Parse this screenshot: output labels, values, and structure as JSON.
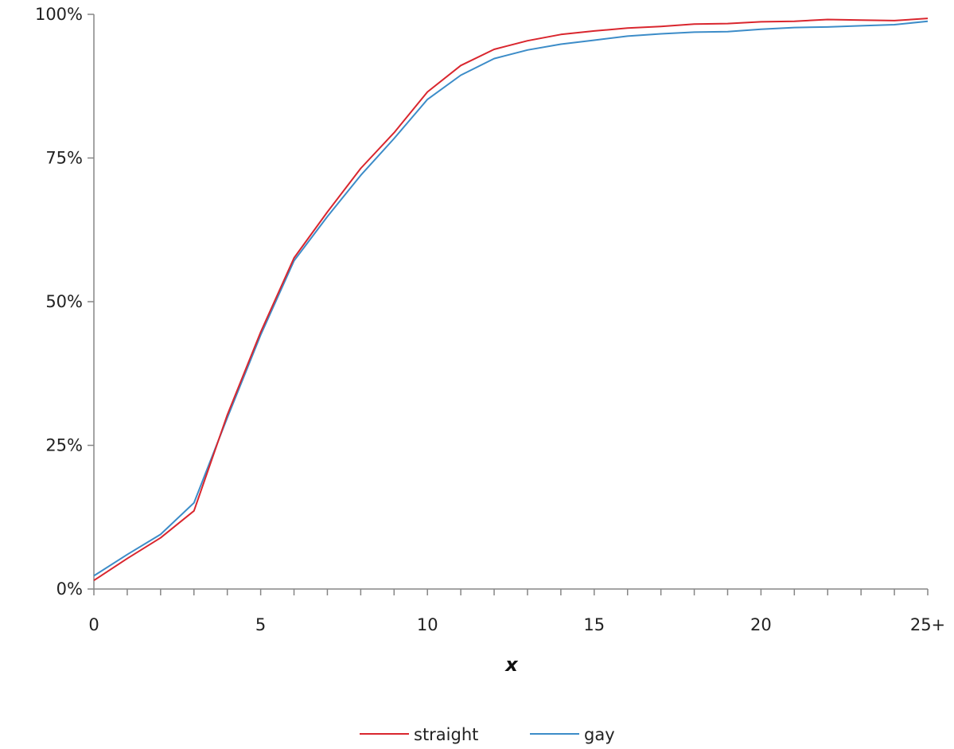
{
  "chart_data": {
    "type": "line",
    "title": "",
    "xlabel": "x",
    "ylabel": "",
    "x": [
      0,
      1,
      2,
      3,
      4,
      5,
      6,
      7,
      8,
      9,
      10,
      11,
      12,
      13,
      14,
      15,
      16,
      17,
      18,
      19,
      20,
      21,
      22,
      23,
      24,
      25
    ],
    "xlim": [
      0,
      25
    ],
    "ylim": [
      0,
      100
    ],
    "x_ticks": [
      {
        "value": 0,
        "label": "0"
      },
      {
        "value": 5,
        "label": "5"
      },
      {
        "value": 10,
        "label": "10"
      },
      {
        "value": 15,
        "label": "15"
      },
      {
        "value": 20,
        "label": "20"
      },
      {
        "value": 25,
        "label": "25+"
      }
    ],
    "y_ticks": [
      {
        "value": 0,
        "label": "0%"
      },
      {
        "value": 25,
        "label": "25%"
      },
      {
        "value": 50,
        "label": "50%"
      },
      {
        "value": 75,
        "label": "75%"
      },
      {
        "value": 100,
        "label": "100%"
      }
    ],
    "grid": false,
    "legend_position": "bottom-center",
    "series": [
      {
        "name": "straight",
        "color": "#d9262e",
        "values": [
          1.5,
          5.3,
          8.9,
          13.6,
          30.3,
          44.7,
          57.6,
          65.6,
          73.2,
          79.4,
          86.5,
          91.1,
          93.9,
          95.4,
          96.5,
          97.1,
          97.6,
          97.9,
          98.3,
          98.4,
          98.7,
          98.8,
          99.1,
          99.0,
          98.9,
          99.3
        ]
      },
      {
        "name": "gay",
        "color": "#3c8cc8",
        "values": [
          2.3,
          6.0,
          9.5,
          15.0,
          29.8,
          44.2,
          57.1,
          64.8,
          72.0,
          78.4,
          85.2,
          89.4,
          92.3,
          93.8,
          94.8,
          95.5,
          96.2,
          96.6,
          96.9,
          97.0,
          97.4,
          97.7,
          97.8,
          98.0,
          98.2,
          98.8
        ]
      }
    ]
  }
}
